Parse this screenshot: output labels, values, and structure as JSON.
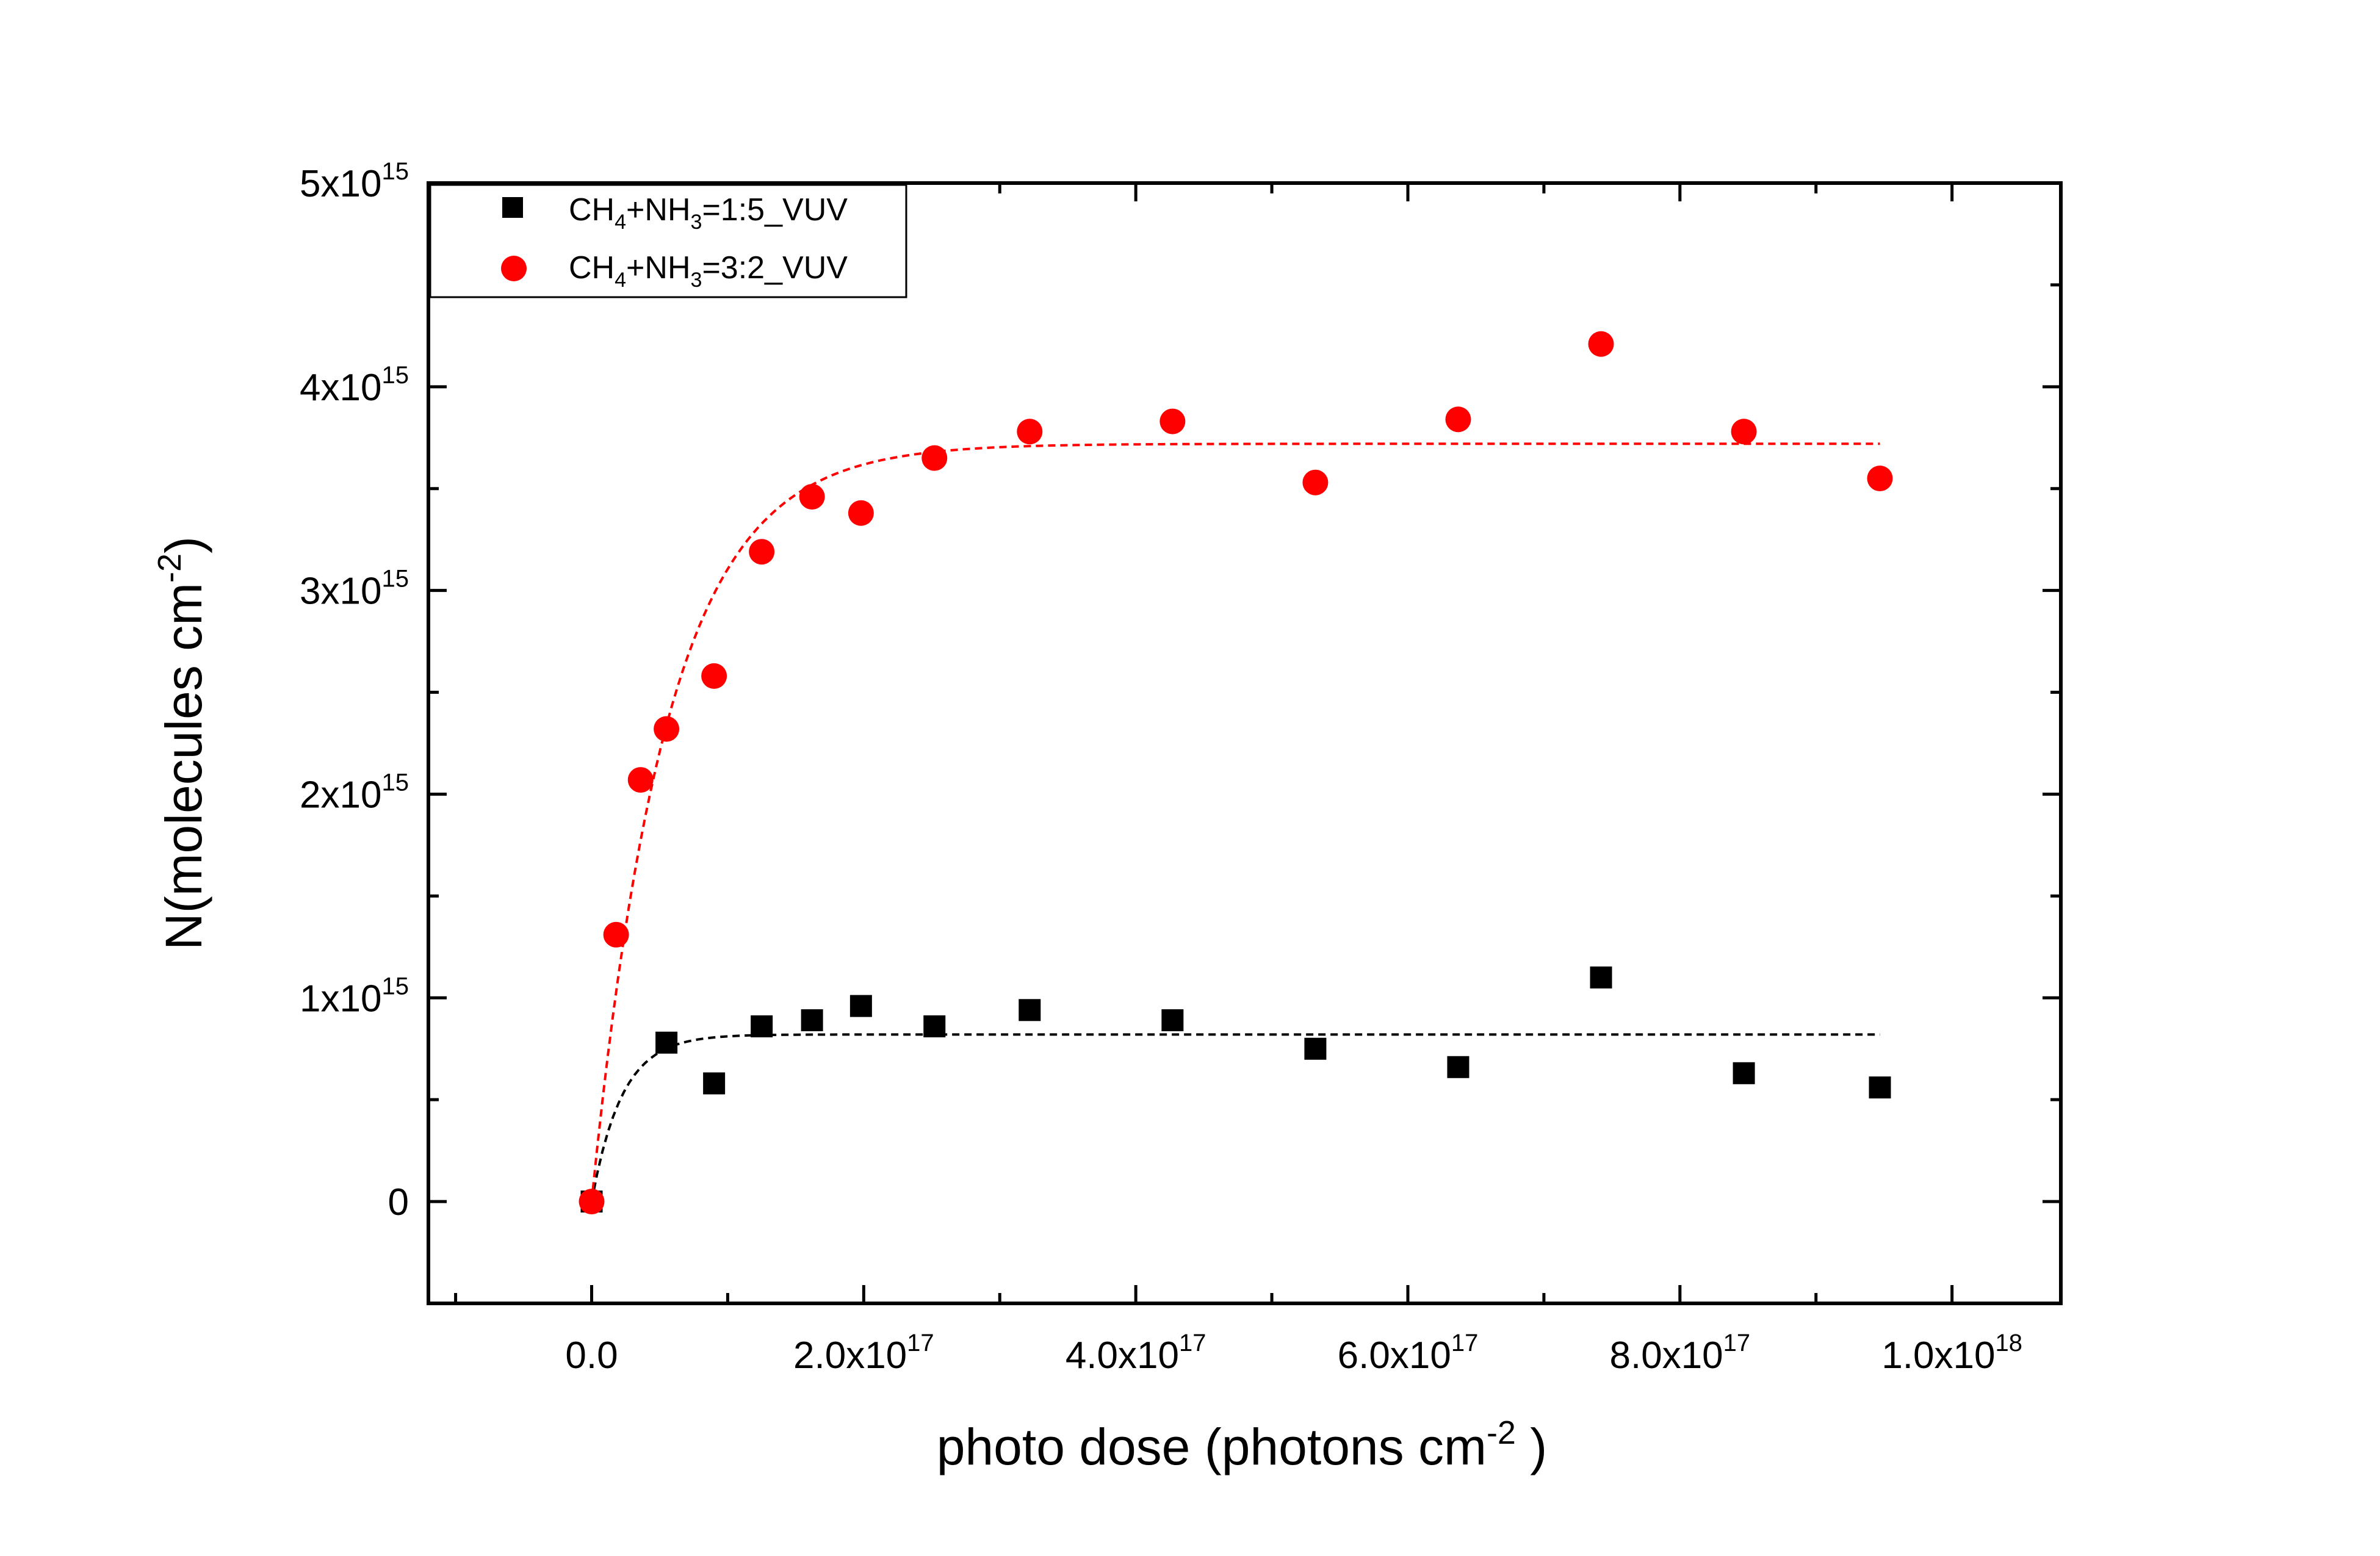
{
  "chart_data": {
    "type": "scatter",
    "xlabel": {
      "base": "photo dose (photons cm",
      "exp": "-2",
      "close": " )"
    },
    "ylabel": {
      "base": "N(molecules cm",
      "exp": "-2",
      "close": ")"
    },
    "xlim": [
      -1.2e+17,
      1.08e+18
    ],
    "ylim": [
      -500000000000000.0,
      5000000000000000.0
    ],
    "x_ticks": [
      {
        "value": 0,
        "base": "0.0",
        "exp": ""
      },
      {
        "value": 2e+17,
        "base": "2.0x10",
        "exp": "17"
      },
      {
        "value": 4e+17,
        "base": "4.0x10",
        "exp": "17"
      },
      {
        "value": 6e+17,
        "base": "6.0x10",
        "exp": "17"
      },
      {
        "value": 8e+17,
        "base": "8.0x10",
        "exp": "17"
      },
      {
        "value": 1e+18,
        "base": "1.0x10",
        "exp": "18"
      }
    ],
    "x_minor_ticks": [
      -1e+17,
      1e+17,
      3e+17,
      5e+17,
      7e+17,
      9e+17
    ],
    "y_ticks": [
      {
        "value": 0,
        "base": "0",
        "exp": ""
      },
      {
        "value": 1000000000000000.0,
        "base": "1x10",
        "exp": "15"
      },
      {
        "value": 2000000000000000.0,
        "base": "2x10",
        "exp": "15"
      },
      {
        "value": 3000000000000000.0,
        "base": "3x10",
        "exp": "15"
      },
      {
        "value": 4000000000000000.0,
        "base": "4x10",
        "exp": "15"
      },
      {
        "value": 5000000000000000.0,
        "base": "5x10",
        "exp": "15"
      }
    ],
    "y_minor_ticks": [
      500000000000000.0,
      1500000000000000.0,
      2500000000000000.0,
      3500000000000000.0,
      4500000000000000.0
    ],
    "legend": {
      "placement": "top-left"
    },
    "series": [
      {
        "name": {
          "p1": "CH",
          "s1": "4",
          "p2": "+NH",
          "s2": "3",
          "p3": "=1:5_VUV"
        },
        "marker": "square",
        "color": "#000000",
        "x": [
          0,
          5.5e+16,
          9e+16,
          1.25e+17,
          1.62e+17,
          1.98e+17,
          2.52e+17,
          3.22e+17,
          4.27e+17,
          5.32e+17,
          6.37e+17,
          7.42e+17,
          8.47e+17,
          9.47e+17
        ],
        "y": [
          0,
          780000000000000.0,
          580000000000000.0,
          860000000000000.0,
          890000000000000.0,
          960000000000000.0,
          860000000000000.0,
          940000000000000.0,
          890000000000000.0,
          750000000000000.0,
          660000000000000.0,
          1100000000000000.0,
          630000000000000.0,
          560000000000000.0
        ],
        "fit": {
          "type": "exponential",
          "amplitude": 820000000000000.0,
          "rate_constant": 4.5e-17,
          "x_end": 9.47e+17,
          "color": "#000000"
        }
      },
      {
        "name": {
          "p1": "CH",
          "s1": "4",
          "p2": "+NH",
          "s2": "3",
          "p3": "=3:2_VUV"
        },
        "marker": "circle",
        "color": "#ff0000",
        "x": [
          0,
          1.8e+16,
          3.6e+16,
          5.5e+16,
          9e+16,
          1.25e+17,
          1.62e+17,
          1.98e+17,
          2.52e+17,
          3.22e+17,
          4.27e+17,
          5.32e+17,
          6.37e+17,
          7.42e+17,
          8.47e+17,
          9.47e+17
        ],
        "y": [
          0,
          1310000000000000.0,
          2070000000000000.0,
          2320000000000000.0,
          2580000000000000.0,
          3190000000000000.0,
          3460000000000000.0,
          3380000000000000.0,
          3650000000000000.0,
          3780000000000000.0,
          3830000000000000.0,
          3530000000000000.0,
          3840000000000000.0,
          4210000000000000.0,
          3780000000000000.0,
          3550000000000000.0
        ],
        "fit": {
          "type": "exponential",
          "amplitude": 3720000000000000.0,
          "rate_constant": 1.8e-17,
          "x_end": 9.47e+17,
          "color": "#ff0000"
        }
      }
    ]
  }
}
